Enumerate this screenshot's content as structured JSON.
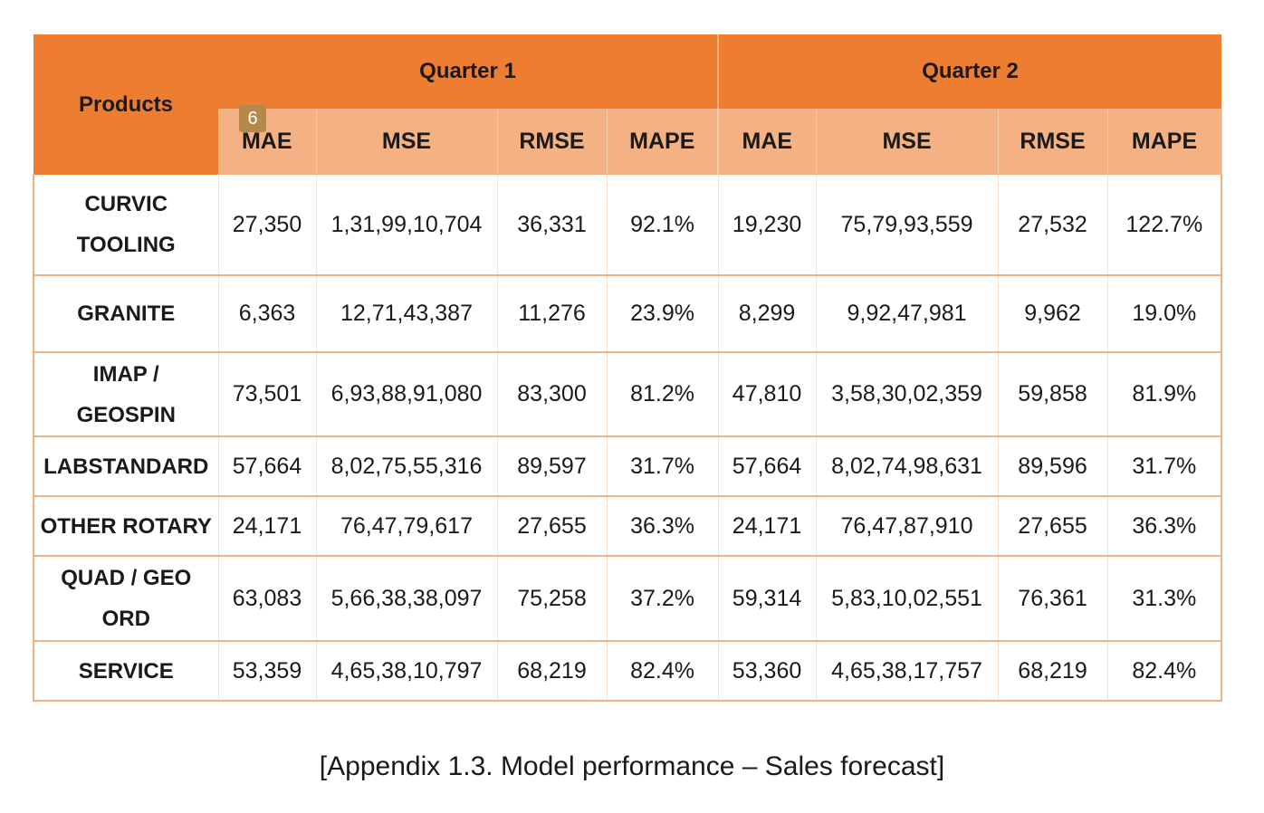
{
  "table": {
    "products_header": "Products",
    "quarters": [
      "Quarter 1",
      "Quarter 2"
    ],
    "metrics": [
      "MAE",
      "MSE",
      "RMSE",
      "MAPE",
      "MAE",
      "MSE",
      "RMSE",
      "MAPE"
    ],
    "page_marker": "6",
    "rows": [
      {
        "product_line1": "CURVIC",
        "product_line2": "TOOLING",
        "values": [
          "27,350",
          "1,31,99,10,704",
          "36,331",
          "92.1%",
          "19,230",
          "75,79,93,559",
          "27,532",
          "122.7%"
        ]
      },
      {
        "product_line1": "GRANITE",
        "product_line2": "",
        "values": [
          "6,363",
          "12,71,43,387",
          "11,276",
          "23.9%",
          "8,299",
          "9,92,47,981",
          "9,962",
          "19.0%"
        ]
      },
      {
        "product_line1": "IMAP /",
        "product_line2": "GEOSPIN",
        "values": [
          "73,501",
          "6,93,88,91,080",
          "83,300",
          "81.2%",
          "47,810",
          "3,58,30,02,359",
          "59,858",
          "81.9%"
        ]
      },
      {
        "product_line1": "LABSTANDARD",
        "product_line2": "",
        "values": [
          "57,664",
          "8,02,75,55,316",
          "89,597",
          "31.7%",
          "57,664",
          "8,02,74,98,631",
          "89,596",
          "31.7%"
        ]
      },
      {
        "product_line1": "OTHER ROTARY",
        "product_line2": "",
        "values": [
          "24,171",
          "76,47,79,617",
          "27,655",
          "36.3%",
          "24,171",
          "76,47,87,910",
          "27,655",
          "36.3%"
        ]
      },
      {
        "product_line1": "QUAD / GEO",
        "product_line2": "ORD",
        "values": [
          "63,083",
          "5,66,38,38,097",
          "75,258",
          "37.2%",
          "59,314",
          "5,83,10,02,551",
          "76,361",
          "31.3%"
        ]
      },
      {
        "product_line1": "SERVICE",
        "product_line2": "",
        "values": [
          "53,359",
          "4,65,38,10,797",
          "68,219",
          "82.4%",
          "53,360",
          "4,65,38,17,757",
          "68,219",
          "82.4%"
        ]
      }
    ]
  },
  "caption": "[Appendix 1.3. Model performance – Sales forecast]",
  "colors": {
    "header_dark": "#ed7d31",
    "header_light": "#f4b183",
    "marker": "#b5884c"
  }
}
